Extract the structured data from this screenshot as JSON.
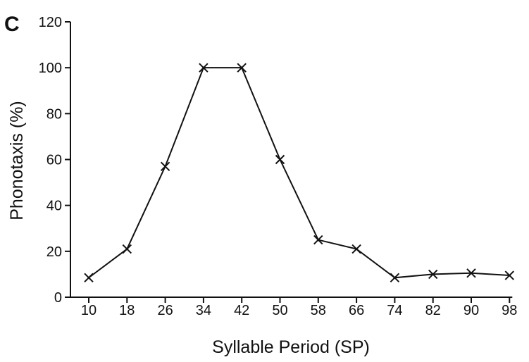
{
  "panel_label": "C",
  "chart_data": {
    "type": "line",
    "xlabel": "Syllable Period (SP)",
    "ylabel": "Phonotaxis (%)",
    "x": [
      10,
      18,
      26,
      34,
      42,
      50,
      58,
      66,
      74,
      82,
      90,
      98
    ],
    "y": [
      8.5,
      21,
      57,
      100,
      100,
      60,
      25,
      21,
      8.5,
      10,
      10.5,
      9.5
    ],
    "xticks": [
      "10",
      "18",
      "26",
      "34",
      "42",
      "50",
      "58",
      "66",
      "74",
      "82",
      "90",
      "98"
    ],
    "yticks": [
      0,
      20,
      40,
      60,
      80,
      100,
      120
    ],
    "ylim": [
      0,
      120
    ],
    "marker": "x",
    "grid": false,
    "line_color": "#111111"
  }
}
